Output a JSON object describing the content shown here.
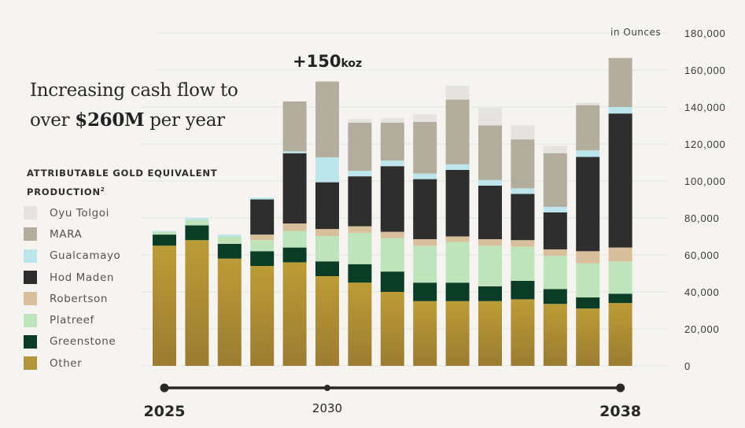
{
  "headline": {
    "line1": "Increasing cash flow to",
    "line2_prefix": "over ",
    "line2_bold": "$260M",
    "line2_suffix": " per year"
  },
  "legend_title": {
    "line1": "ATTRIBUTABLE GOLD EQUIVALENT",
    "line2": "PRODUCTION",
    "superscript": "2"
  },
  "unit_label": "in Ounces",
  "annotation": {
    "value": "+150",
    "unit": "koz"
  },
  "timeline": {
    "labels": [
      {
        "text": "2025",
        "index": 0,
        "bold": true
      },
      {
        "text": "2030",
        "index": 5,
        "bold": false
      },
      {
        "text": "2038",
        "index": 14,
        "bold": true
      }
    ]
  },
  "chart_data": {
    "type": "bar",
    "stacked": true,
    "title": "Attributable Gold Equivalent Production",
    "ylabel": "in Ounces",
    "ylim": [
      0,
      180000
    ],
    "yticks": [
      0,
      20000,
      40000,
      60000,
      80000,
      100000,
      120000,
      140000,
      160000,
      180000
    ],
    "ytick_labels": [
      "0",
      "20,000",
      "40,000",
      "60,000",
      "80,000",
      "100,000",
      "120,000",
      "140,000",
      "160,000",
      "180,000"
    ],
    "y_axis_position": "right",
    "grid": true,
    "legend_position": "left",
    "categories": [
      "2025",
      "",
      "",
      "",
      "",
      "2030",
      "",
      "",
      "",
      "",
      "",
      "",
      "",
      "",
      "2038"
    ],
    "series": [
      {
        "name": "Other",
        "color": "#b3963a",
        "values": [
          65000,
          68000,
          58000,
          54000,
          56000,
          48500,
          45000,
          40000,
          35000,
          35000,
          35000,
          36000,
          33500,
          31000,
          34000
        ]
      },
      {
        "name": "Greenstone",
        "color": "#0b3d26",
        "values": [
          6000,
          8000,
          8000,
          8000,
          8000,
          8000,
          10000,
          11000,
          10000,
          10000,
          8000,
          10000,
          8000,
          6000,
          5000
        ]
      },
      {
        "name": "Platreef",
        "color": "#bfe3bb",
        "values": [
          1500,
          3000,
          4000,
          6000,
          9000,
          13700,
          17000,
          18000,
          20000,
          22000,
          22000,
          18500,
          18000,
          18500,
          17500
        ]
      },
      {
        "name": "Robertson",
        "color": "#d8bf9b",
        "values": [
          0,
          0,
          0,
          3000,
          4000,
          3800,
          3500,
          3500,
          3500,
          3000,
          3500,
          3500,
          3500,
          6500,
          7500
        ]
      },
      {
        "name": "Hod Maden",
        "color": "#2e2e2e",
        "values": [
          0,
          0,
          0,
          19000,
          38000,
          25300,
          27000,
          35500,
          32500,
          36000,
          29000,
          25000,
          20000,
          51000,
          72500
        ]
      },
      {
        "name": "Gualcamayo",
        "color": "#bde6ec",
        "values": [
          500,
          1000,
          1000,
          1000,
          1000,
          13500,
          3000,
          3000,
          3000,
          3000,
          3000,
          3000,
          3000,
          3500,
          3500
        ]
      },
      {
        "name": "MARA",
        "color": "#b3ad9e",
        "values": [
          0,
          0,
          0,
          0,
          27000,
          41000,
          26000,
          20500,
          28000,
          35000,
          29500,
          26500,
          29000,
          24500,
          26500
        ]
      },
      {
        "name": "Oyu Tolgoi",
        "color": "#e5e3df",
        "values": [
          0,
          0,
          0,
          0,
          0,
          0,
          2000,
          2500,
          4000,
          7500,
          9500,
          7500,
          4000,
          1500,
          0
        ]
      }
    ],
    "legend_order": [
      "Oyu Tolgoi",
      "MARA",
      "Gualcamayo",
      "Hod Maden",
      "Robertson",
      "Platreef",
      "Greenstone",
      "Other"
    ]
  }
}
